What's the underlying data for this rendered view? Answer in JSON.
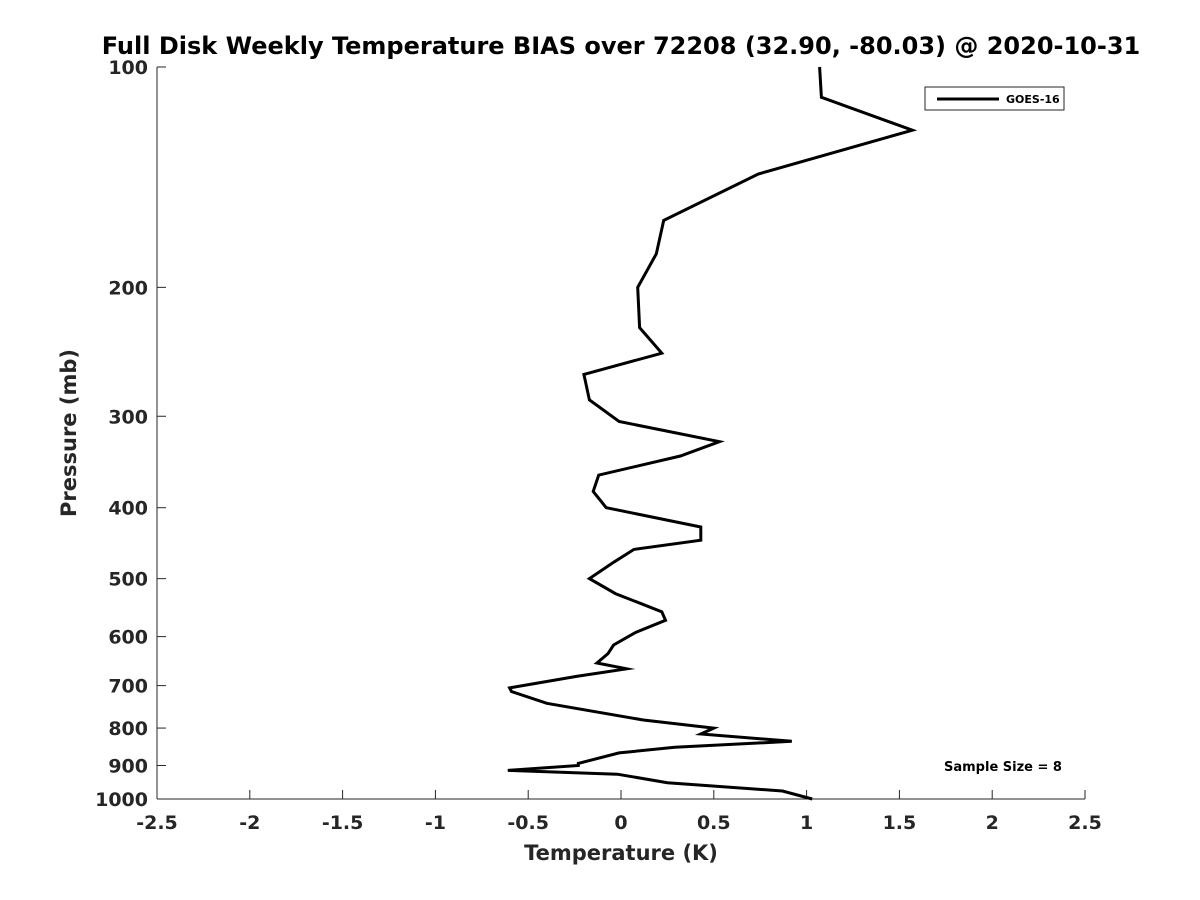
{
  "chart_data": {
    "type": "line",
    "title": "Full Disk Weekly Temperature BIAS over 72208 (32.90, -80.03) @ 2020-10-31",
    "xlabel": "Temperature (K)",
    "ylabel": "Pressure (mb)",
    "xlim": [
      -2.5,
      2.5
    ],
    "ylim": [
      100,
      1000
    ],
    "y_scale": "log",
    "y_reversed": true,
    "x_ticks": [
      "-2.5",
      "-2",
      "-1.5",
      "-1",
      "-0.5",
      "0",
      "0.5",
      "1",
      "1.5",
      "2",
      "2.5"
    ],
    "y_ticks": [
      "100",
      "200",
      "300",
      "400",
      "500",
      "600",
      "700",
      "800",
      "900",
      "1000"
    ],
    "grid": false,
    "legend": {
      "placement": "top-right",
      "entries": [
        "GOES-16"
      ]
    },
    "annotation": "Sample Size = 8",
    "series": [
      {
        "name": "GOES-16",
        "color": "#000000",
        "points": [
          [
            1.03,
            1000
          ],
          [
            0.87,
            975
          ],
          [
            0.25,
            950
          ],
          [
            -0.02,
            925
          ],
          [
            -0.61,
            914
          ],
          [
            -0.23,
            900
          ],
          [
            -0.23,
            894
          ],
          [
            -0.01,
            865
          ],
          [
            0.29,
            850
          ],
          [
            0.92,
            834
          ],
          [
            0.43,
            815
          ],
          [
            0.5,
            800
          ],
          [
            0.12,
            780
          ],
          [
            -0.4,
            740
          ],
          [
            -0.59,
            713
          ],
          [
            -0.6,
            705
          ],
          [
            -0.24,
            680
          ],
          [
            0.03,
            664
          ],
          [
            -0.13,
            652
          ],
          [
            -0.07,
            633
          ],
          [
            -0.04,
            616
          ],
          [
            0.08,
            592
          ],
          [
            0.24,
            570
          ],
          [
            0.22,
            555
          ],
          [
            -0.03,
            524
          ],
          [
            -0.17,
            500
          ],
          [
            -0.04,
            475
          ],
          [
            0.07,
            456
          ],
          [
            0.43,
            443
          ],
          [
            0.43,
            425
          ],
          [
            -0.08,
            400
          ],
          [
            -0.15,
            380
          ],
          [
            -0.12,
            361
          ],
          [
            0.32,
            340
          ],
          [
            0.53,
            325
          ],
          [
            -0.01,
            305
          ],
          [
            -0.17,
            285
          ],
          [
            -0.2,
            263
          ],
          [
            0.22,
            246
          ],
          [
            0.1,
            227
          ],
          [
            0.09,
            200
          ],
          [
            0.19,
            180
          ],
          [
            0.23,
            162
          ],
          [
            0.74,
            140
          ],
          [
            1.57,
            122
          ],
          [
            1.08,
            110
          ],
          [
            1.07,
            100
          ]
        ]
      }
    ]
  }
}
